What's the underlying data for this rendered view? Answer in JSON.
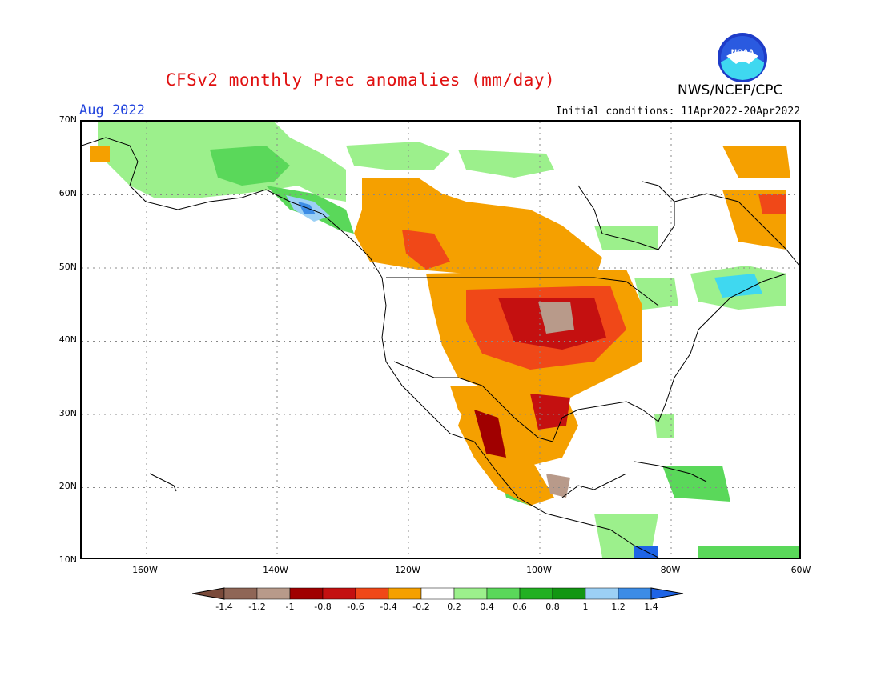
{
  "title": "CFSv2 monthly Prec anomalies (mm/day)",
  "agency": "NWS/NCEP/CPC",
  "logo_text": "NOAA",
  "month_label": "Aug 2022",
  "initial_conditions": "Initial conditions: 11Apr2022-20Apr2022",
  "lat_labels": [
    "70N",
    "60N",
    "50N",
    "40N",
    "30N",
    "20N",
    "10N"
  ],
  "lon_labels": [
    "160W",
    "140W",
    "120W",
    "100W",
    "80W",
    "60W"
  ],
  "colorbar": {
    "tick_labels": [
      "-1.4",
      "-1.2",
      "-1",
      "-0.8",
      "-0.6",
      "-0.4",
      "-0.2",
      "0.2",
      "0.4",
      "0.6",
      "0.8",
      "1",
      "1.2",
      "1.4"
    ],
    "colors": [
      "#7a4a3a",
      "#8f6656",
      "#b89a8a",
      "#a00000",
      "#c41010",
      "#f04818",
      "#f5a000",
      "#ffffff",
      "#9cf08c",
      "#5ad85a",
      "#22b022",
      "#129612",
      "#9cd0f5",
      "#3c8ce6",
      "#1e64e6"
    ]
  },
  "anomaly_regions": [
    {
      "name": "northern-plains-dry",
      "level": "-1.2 to -0.8"
    },
    {
      "name": "central-plains-dry",
      "level": "-1 to -0.4"
    },
    {
      "name": "canadian-prairies-dry",
      "level": "-0.6 to -0.2"
    },
    {
      "name": "southern-texas-dry",
      "level": "-0.8 to -0.2"
    },
    {
      "name": "mexico-dry",
      "level": "-1 to -0.2"
    },
    {
      "name": "alaska-wet",
      "level": "0.2 to 0.8"
    },
    {
      "name": "panhandle-wet",
      "level": "0.4 to 1.4"
    },
    {
      "name": "quebec-wet",
      "level": "0.2 to 0.6"
    },
    {
      "name": "caribbean-wet",
      "level": "0.2 to 0.8"
    }
  ]
}
